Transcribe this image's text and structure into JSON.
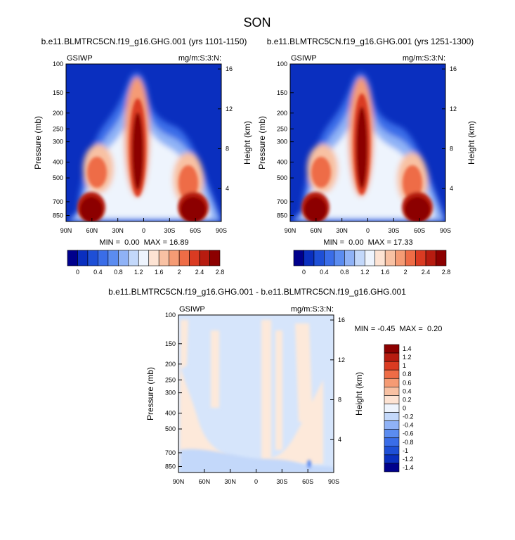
{
  "page": {
    "season_title": "SON"
  },
  "colors": {
    "abs_scale": [
      "#00008c",
      "#0a2fbf",
      "#1e4fd6",
      "#3a6de8",
      "#5b8cf0",
      "#8fb2f6",
      "#c3d8fa",
      "#eef4fd",
      "#fde3d3",
      "#f8c1a3",
      "#f59b74",
      "#ee6c46",
      "#da3b22",
      "#b71c10",
      "#8c0000"
    ],
    "diff_scale": [
      "#00008c",
      "#0a2fbf",
      "#1e4fd6",
      "#3a6de8",
      "#5b8cf0",
      "#8fb2f6",
      "#c3d8fa",
      "#eef4fd",
      "#fde3d3",
      "#f8c1a3",
      "#f59b74",
      "#ee6c46",
      "#da3b22",
      "#b71c10",
      "#8c0000"
    ]
  },
  "chart_data": [
    {
      "type": "heatmap",
      "title": "b.e11.BLMTRC5CN.f19_g16.GHG.001 (yrs 1101-1150)",
      "left_label": "GSIWP",
      "right_label": "mg/m:S:3:N:",
      "ylabel": "Pressure (mb)",
      "ylabel_right": "Height (km)",
      "x_ticks": [
        "90N",
        "60N",
        "30N",
        "0",
        "30S",
        "60S",
        "90S"
      ],
      "y_ticks": [
        "100",
        "150",
        "200",
        "250",
        "300",
        "400",
        "500",
        "700",
        "850"
      ],
      "y_ticks_right": [
        "16",
        "12",
        "8",
        "4"
      ],
      "stats": "MIN =  0.00  MAX = 16.89",
      "min": 0.0,
      "max": 16.89,
      "colorbar_labels": [
        "0",
        "0.4",
        "0.8",
        "1.2",
        "1.6",
        "2",
        "2.4",
        "2.8"
      ]
    },
    {
      "type": "heatmap",
      "title": "b.e11.BLMTRC5CN.f19_g16.GHG.001 (yrs 1251-1300)",
      "left_label": "GSIWP",
      "right_label": "mg/m:S:3:N:",
      "ylabel": "Pressure (mb)",
      "ylabel_right": "Height (km)",
      "x_ticks": [
        "90N",
        "60N",
        "30N",
        "0",
        "30S",
        "60S",
        "90S"
      ],
      "y_ticks": [
        "100",
        "150",
        "200",
        "250",
        "300",
        "400",
        "500",
        "700",
        "850"
      ],
      "y_ticks_right": [
        "16",
        "12",
        "8",
        "4"
      ],
      "stats": "MIN =  0.00  MAX = 17.33",
      "min": 0.0,
      "max": 17.33,
      "colorbar_labels": [
        "0",
        "0.4",
        "0.8",
        "1.2",
        "1.6",
        "2",
        "2.4",
        "2.8"
      ]
    },
    {
      "type": "heatmap",
      "title": "b.e11.BLMTRC5CN.f19_g16.GHG.001 - b.e11.BLMTRC5CN.f19_g16.GHG.001",
      "left_label": "GSIWP",
      "right_label": "mg/m:S:3:N:",
      "ylabel": "Pressure (mb)",
      "ylabel_right": "Height (km)",
      "x_ticks": [
        "90N",
        "60N",
        "30N",
        "0",
        "30S",
        "60S",
        "90S"
      ],
      "y_ticks": [
        "100",
        "150",
        "200",
        "250",
        "300",
        "400",
        "500",
        "700",
        "850"
      ],
      "y_ticks_right": [
        "16",
        "12",
        "8",
        "4"
      ],
      "stats": "MIN = -0.45  MAX =  0.20",
      "min": -0.45,
      "max": 0.2,
      "colorbar_labels": [
        "1.4",
        "1.2",
        "1",
        "0.8",
        "0.6",
        "0.4",
        "0.2",
        "0",
        "-0.2",
        "-0.4",
        "-0.6",
        "-0.8",
        "-1",
        "-1.2",
        "-1.4"
      ]
    }
  ]
}
